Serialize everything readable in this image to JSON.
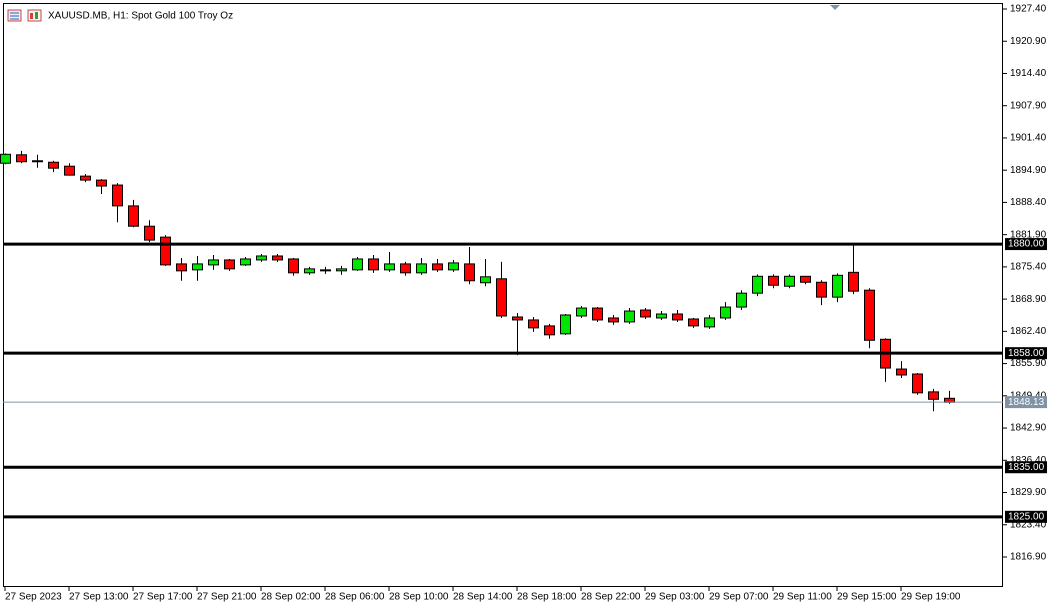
{
  "chart_data": {
    "type": "candlestick",
    "title": "XAUUSD.MB, H1:  Spot Gold 100 Troy Oz",
    "up_color": "#00e600",
    "down_color": "#ff0000",
    "categories": [
      "27 Sep 2023",
      null,
      null,
      null,
      "27 Sep 13:00",
      null,
      null,
      null,
      "27 Sep 17:00",
      null,
      null,
      null,
      "27 Sep 21:00",
      null,
      null,
      null,
      "28 Sep 02:00",
      null,
      null,
      null,
      "28 Sep 06:00",
      null,
      null,
      null,
      "28 Sep 10:00",
      null,
      null,
      null,
      "28 Sep 14:00",
      null,
      null,
      null,
      "28 Sep 18:00",
      null,
      null,
      null,
      "28 Sep 22:00",
      null,
      null,
      null,
      "29 Sep 03:00",
      null,
      null,
      null,
      "29 Sep 07:00",
      null,
      null,
      null,
      "29 Sep 11:00",
      null,
      null,
      null,
      "29 Sep 15:00",
      null,
      null,
      null,
      "29 Sep 19:00",
      null,
      null,
      null
    ],
    "open": [
      1896.3,
      1898.0,
      1896.8,
      1896.5,
      1895.7,
      1893.7,
      1892.9,
      1891.9,
      1887.7,
      1883.6,
      1881.4,
      1876.0,
      1874.8,
      1875.8,
      1876.8,
      1875.8,
      1876.8,
      1877.6,
      1877.0,
      1874.2,
      1874.8,
      1874.6,
      1874.8,
      1877.0,
      1874.8,
      1876.0,
      1874.2,
      1876.0,
      1874.8,
      1876.0,
      1872.2,
      1873.0,
      1865.3,
      1864.7,
      1863.5,
      1861.9,
      1865.5,
      1867.1,
      1865.1,
      1864.3,
      1866.7,
      1865.1,
      1865.9,
      1864.9,
      1863.3,
      1865.1,
      1867.3,
      1870.1,
      1873.5,
      1871.5,
      1873.5,
      1872.3,
      1869.3,
      1874.3,
      1870.7,
      1860.8,
      1854.8,
      1853.8,
      1850.2,
      1848.9
    ],
    "high": [
      1898.3,
      1898.8,
      1898.0,
      1896.8,
      1896.3,
      1894.1,
      1893.1,
      1892.3,
      1888.9,
      1884.8,
      1881.8,
      1877.2,
      1877.6,
      1877.8,
      1877.0,
      1877.4,
      1878.0,
      1878.0,
      1877.2,
      1875.4,
      1875.4,
      1875.6,
      1877.4,
      1877.8,
      1878.4,
      1876.4,
      1877.2,
      1877.0,
      1876.8,
      1879.4,
      1877.0,
      1876.4,
      1866.1,
      1865.3,
      1863.9,
      1865.9,
      1867.5,
      1867.3,
      1865.7,
      1867.1,
      1867.1,
      1866.5,
      1866.7,
      1865.1,
      1865.7,
      1868.3,
      1870.7,
      1873.9,
      1873.9,
      1873.9,
      1873.5,
      1872.7,
      1874.1,
      1879.8,
      1871.1,
      1861.0,
      1856.4,
      1854.0,
      1850.8,
      1850.4
    ],
    "low": [
      1896.1,
      1896.3,
      1895.4,
      1894.5,
      1893.8,
      1892.5,
      1890.1,
      1884.4,
      1883.4,
      1880.4,
      1875.6,
      1872.6,
      1872.6,
      1874.8,
      1874.6,
      1875.6,
      1876.4,
      1876.4,
      1873.6,
      1873.8,
      1874.0,
      1873.8,
      1874.6,
      1874.2,
      1874.4,
      1873.6,
      1873.8,
      1874.4,
      1874.4,
      1871.9,
      1871.5,
      1865.1,
      1857.6,
      1862.3,
      1860.9,
      1861.7,
      1865.1,
      1864.3,
      1863.7,
      1863.9,
      1864.9,
      1864.7,
      1864.3,
      1863.1,
      1862.9,
      1864.7,
      1866.7,
      1869.5,
      1871.1,
      1871.1,
      1871.9,
      1867.7,
      1868.3,
      1869.9,
      1859.0,
      1852.2,
      1853.0,
      1849.6,
      1846.3,
      1847.8
    ],
    "close": [
      1898.1,
      1896.6,
      1896.7,
      1895.3,
      1893.9,
      1892.9,
      1891.7,
      1887.7,
      1883.6,
      1880.8,
      1875.8,
      1874.6,
      1876.0,
      1876.8,
      1875.0,
      1877.0,
      1877.6,
      1876.8,
      1874.2,
      1875.0,
      1874.6,
      1875.0,
      1877.0,
      1874.8,
      1876.0,
      1874.2,
      1876.0,
      1874.8,
      1876.2,
      1872.6,
      1873.4,
      1865.5,
      1864.7,
      1863.1,
      1861.7,
      1865.7,
      1867.1,
      1864.7,
      1864.3,
      1866.5,
      1865.3,
      1865.9,
      1864.7,
      1863.5,
      1865.1,
      1867.3,
      1870.1,
      1873.5,
      1871.7,
      1873.5,
      1872.3,
      1869.3,
      1873.7,
      1870.5,
      1860.6,
      1855.0,
      1853.6,
      1850.0,
      1848.7,
      1848.1
    ],
    "ylim": [
      1810.85,
      1928.61
    ],
    "yticks": [
      {
        "value": 1927.4,
        "label": "1927.40"
      },
      {
        "value": 1920.9,
        "label": "1920.90"
      },
      {
        "value": 1914.4,
        "label": "1914.40"
      },
      {
        "value": 1907.9,
        "label": "1907.90"
      },
      {
        "value": 1901.4,
        "label": "1901.40"
      },
      {
        "value": 1894.9,
        "label": "1894.90"
      },
      {
        "value": 1888.4,
        "label": "1888.40"
      },
      {
        "value": 1881.9,
        "label": "1881.90"
      },
      {
        "value": 1875.4,
        "label": "1875.40"
      },
      {
        "value": 1868.9,
        "label": "1868.90"
      },
      {
        "value": 1862.4,
        "label": "1862.40"
      },
      {
        "value": 1855.9,
        "label": "1855.90"
      },
      {
        "value": 1849.4,
        "label": "1849.40"
      },
      {
        "value": 1842.9,
        "label": "1842.90"
      },
      {
        "value": 1836.4,
        "label": "1836.40"
      },
      {
        "value": 1829.9,
        "label": "1829.90"
      },
      {
        "value": 1823.4,
        "label": "1823.40"
      },
      {
        "value": 1816.9,
        "label": "1816.90"
      }
    ],
    "levels": [
      {
        "value": 1880,
        "label": "1880.00"
      },
      {
        "value": 1858,
        "label": "1858.00"
      },
      {
        "value": 1835,
        "label": "1835.00"
      },
      {
        "value": 1825,
        "label": "1825.00"
      }
    ],
    "level_color": "#000000",
    "current_price": {
      "value": 1848.13,
      "label": "1848.13"
    },
    "current_price_color": "#7f93a6"
  }
}
